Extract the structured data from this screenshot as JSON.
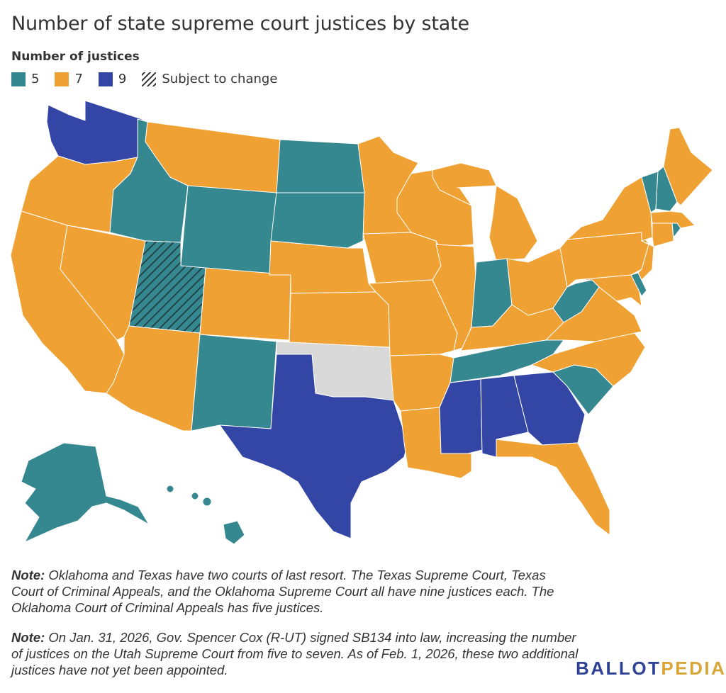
{
  "title": "Number of state supreme court justices by state",
  "legend": {
    "title": "Number of justices",
    "items": [
      {
        "label": "5",
        "color": "#35888f"
      },
      {
        "label": "7",
        "color": "#f0a133"
      },
      {
        "label": "9",
        "color": "#3446a5"
      },
      {
        "label": "Subject to change",
        "pattern": "hatched"
      }
    ]
  },
  "colors": {
    "five": "#35888f",
    "seven": "#f0a133",
    "nine": "#3446a5",
    "none": "#d9d9d9"
  },
  "states": {
    "Alabama": 9,
    "Alaska": 5,
    "Arizona": 7,
    "Arkansas": 7,
    "California": 7,
    "Colorado": 7,
    "Connecticut": 7,
    "Delaware": 5,
    "Florida": 7,
    "Georgia": 9,
    "Hawaii": 5,
    "Idaho": 5,
    "Illinois": 7,
    "Indiana": 5,
    "Iowa": 7,
    "Kansas": 7,
    "Kentucky": 7,
    "Louisiana": 7,
    "Maine": 7,
    "Maryland": 7,
    "Massachusetts": 7,
    "Michigan": 7,
    "Minnesota": 7,
    "Mississippi": 9,
    "Missouri": 7,
    "Montana": 7,
    "Nebraska": 7,
    "Nevada": 7,
    "New Hampshire": 5,
    "New Jersey": 7,
    "New Mexico": 5,
    "New York": 7,
    "North Carolina": 7,
    "North Dakota": 5,
    "Ohio": 7,
    "Oklahoma": null,
    "Oregon": 7,
    "Pennsylvania": 7,
    "Rhode Island": 5,
    "South Carolina": 5,
    "South Dakota": 5,
    "Tennessee": 5,
    "Texas": 9,
    "Utah": "Subject to change",
    "Vermont": 5,
    "Virginia": 7,
    "Washington": 9,
    "West Virginia": 5,
    "Wisconsin": 7,
    "Wyoming": 5
  },
  "notes": [
    {
      "label": "Note:",
      "text": " Oklahoma and Texas have two courts of last resort. The Texas Supreme Court, Texas Court of Criminal Appeals, and the Oklahoma Supreme Court all have nine justices each. The Oklahoma Court of Criminal Appeals has five justices."
    },
    {
      "label": "Note:",
      "text": " On Jan. 31, 2026, Gov. Spencer Cox (R-UT) signed SB134 into law, increasing the number of justices on the Utah Supreme Court from five to seven. As of Feb. 1, 2026, these two additional justices have not yet been appointed."
    }
  ],
  "logo": {
    "part1": "BALLOT",
    "part2": "PEDIA"
  }
}
